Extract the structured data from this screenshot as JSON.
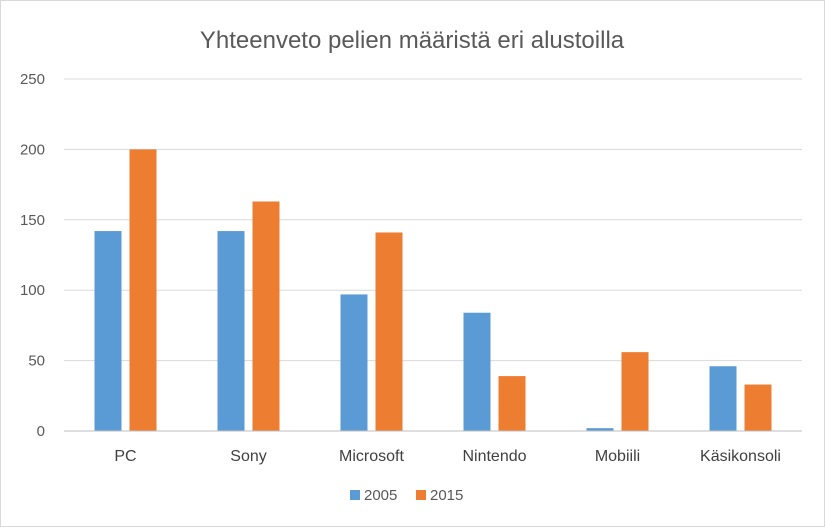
{
  "chart_data": {
    "type": "bar",
    "title": "Yhteenveto pelien määristä eri alustoilla",
    "categories": [
      "PC",
      "Sony",
      "Microsoft",
      "Nintendo",
      "Mobiili",
      "Käsikonsoli"
    ],
    "series": [
      {
        "name": "2005",
        "color": "#5b9bd5",
        "values": [
          142,
          142,
          97,
          84,
          2,
          46
        ]
      },
      {
        "name": "2015",
        "color": "#ed7d31",
        "values": [
          200,
          163,
          141,
          39,
          56,
          33
        ]
      }
    ],
    "ylim": [
      0,
      250
    ],
    "yticks": [
      0,
      50,
      100,
      150,
      200,
      250
    ],
    "grid": true,
    "legend": "bottom-center"
  }
}
